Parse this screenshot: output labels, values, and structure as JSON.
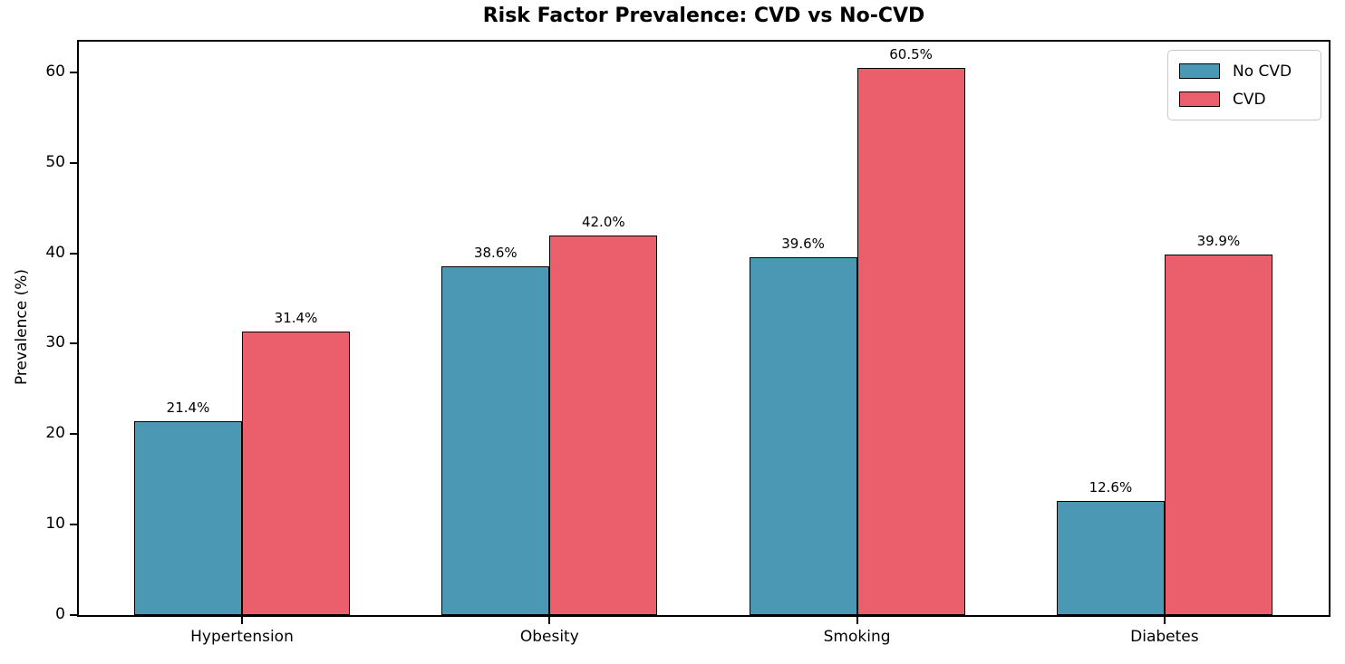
{
  "chart_data": {
    "type": "bar",
    "title": "Risk Factor Prevalence: CVD vs No-CVD",
    "ylabel": "Prevalence (%)",
    "xlabel": "",
    "categories": [
      "Hypertension",
      "Obesity",
      "Smoking",
      "Diabetes"
    ],
    "series": [
      {
        "name": "No CVD",
        "color": "#4A98B4",
        "values": [
          21.4,
          38.6,
          39.6,
          12.6
        ],
        "value_labels": [
          "21.4%",
          "38.6%",
          "39.6%",
          "12.6%"
        ]
      },
      {
        "name": "CVD",
        "color": "#EB5F6C",
        "values": [
          31.4,
          42.0,
          60.5,
          39.9
        ],
        "value_labels": [
          "31.4%",
          "42.0%",
          "60.5%",
          "39.9%"
        ]
      }
    ],
    "yticks": [
      0,
      10,
      20,
      30,
      40,
      50,
      60
    ],
    "ylim": [
      0,
      63.6
    ],
    "grid": false,
    "bar_edge_color": "#000000",
    "legend": {
      "position": "upper right",
      "entries": [
        "No CVD",
        "CVD"
      ]
    }
  }
}
